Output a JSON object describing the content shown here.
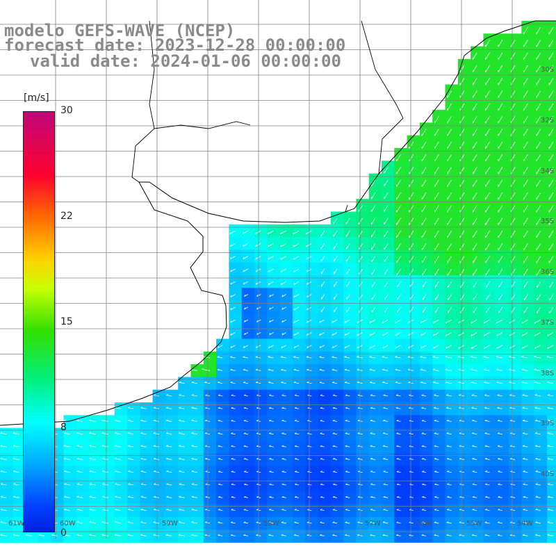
{
  "title": {
    "line1": "modelo GEFS-WAVE (NCEP)",
    "line2": "forecast date: 2023-12-28 00:00:00",
    "line3": "valid date: 2024-01-06 00:00:00"
  },
  "colorbar": {
    "unit": "[m/s]",
    "ticks": [
      "30",
      "22",
      "15",
      "8",
      "0"
    ],
    "range": [
      0,
      30
    ],
    "colors": [
      "#0020e0",
      "#0040ff",
      "#00a8ff",
      "#00ffff",
      "#00f080",
      "#33e000",
      "#c8ff00",
      "#ffd000",
      "#ff6a00",
      "#ff0030",
      "#c0077a"
    ]
  },
  "lat_labels": [
    "30S",
    "32S",
    "34S",
    "35S",
    "36S",
    "37S",
    "38S",
    "39S",
    "40S"
  ],
  "lon_labels": [
    "61W",
    "60W",
    "59W",
    "58W",
    "57W",
    "56W",
    "55W",
    "54W"
  ],
  "map": {
    "variable": "wind speed",
    "arrow_color": "#ffffff",
    "coast_color": "#000000",
    "grid_color": "#808080"
  }
}
